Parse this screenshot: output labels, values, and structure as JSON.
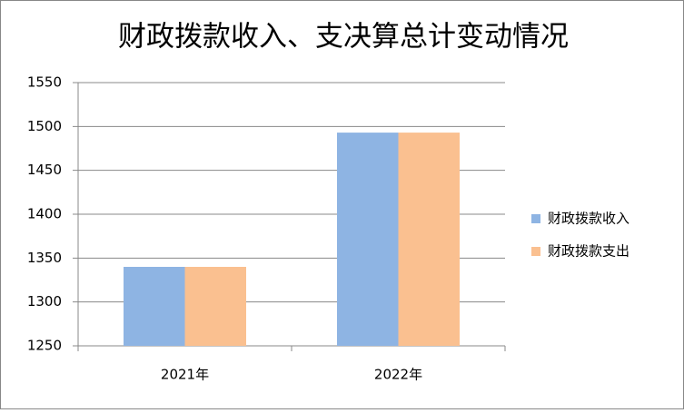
{
  "chart_data": {
    "type": "bar",
    "title": "财政拨款收入、支决算总计变动情况",
    "categories": [
      "2021年",
      "2022年"
    ],
    "series": [
      {
        "name": "财政拨款收入",
        "color": "#8eb4e3",
        "values": [
          1340,
          1493
        ]
      },
      {
        "name": "财政拨款支出",
        "color": "#fac090",
        "values": [
          1340,
          1493
        ]
      }
    ],
    "ylim": [
      1250,
      1550
    ],
    "yticks": [
      1250,
      1300,
      1350,
      1400,
      1450,
      1500,
      1550
    ],
    "grid": true,
    "legend": "right"
  }
}
